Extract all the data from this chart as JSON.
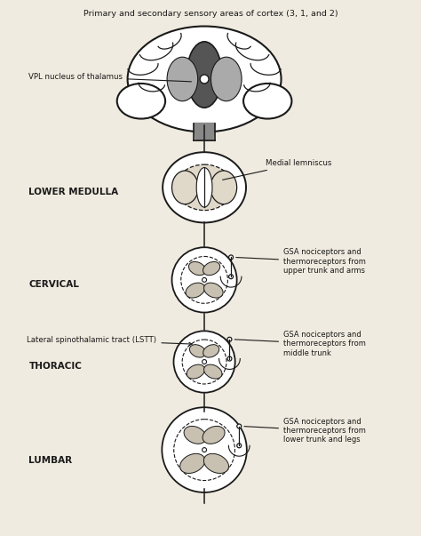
{
  "title": "Primary and secondary sensory areas of cortex (3, 1, and 2)",
  "bg_color": "#f0ebe0",
  "line_color": "#1a1a1a",
  "text_color": "#1a1a1a",
  "labels": {
    "vpl": "VPL nucleus of thalamus",
    "lower_medulla": "LOWER MEDULLA",
    "medial_lemniscus": "Medial lemniscus",
    "cervical": "CERVICAL",
    "lstt": "Lateral spinothalamic tract (LSTT)",
    "thoracic": "THORACIC",
    "lumbar": "LUMBAR",
    "gsa_cervical": "GSA nociceptors and\nthermoreceptors from\nupper trunk and arms",
    "gsa_thoracic": "GSA nociceptors and\nthermoreceptors from\nmiddle trunk",
    "gsa_lumbar": "GSA nociceptors and\nthermoreceptors from\nlower trunk and legs"
  }
}
